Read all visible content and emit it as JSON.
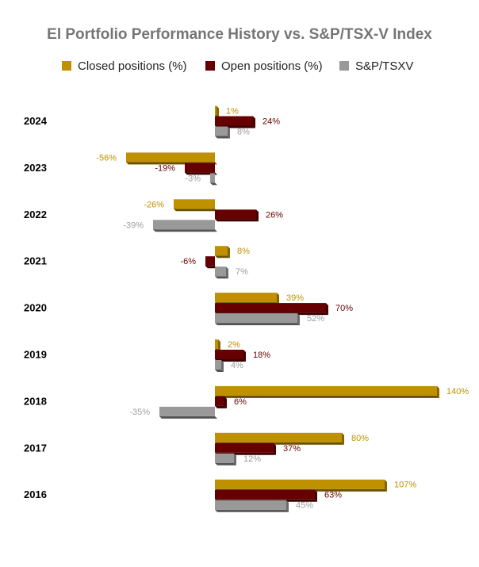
{
  "chart_data": {
    "type": "bar",
    "orientation": "horizontal",
    "title": "El Portfolio Performance History vs. S&P/TSX-V Index",
    "categories": [
      "2024",
      "2023",
      "2022",
      "2021",
      "2020",
      "2019",
      "2018",
      "2017",
      "2016"
    ],
    "series": [
      {
        "name": "Closed positions (%)",
        "color": "#BF9000",
        "values": [
          1,
          -56,
          -26,
          8,
          39,
          2,
          140,
          80,
          107
        ]
      },
      {
        "name": "Open positions (%)",
        "color": "#660000",
        "values": [
          24,
          -19,
          26,
          -6,
          70,
          18,
          6,
          37,
          63
        ]
      },
      {
        "name": "S&P/TSXV",
        "color": "#999999",
        "values": [
          8,
          -3,
          -39,
          7,
          52,
          4,
          -35,
          12,
          45
        ]
      }
    ],
    "value_suffix": "%",
    "legend_position": "top",
    "grid": false
  }
}
